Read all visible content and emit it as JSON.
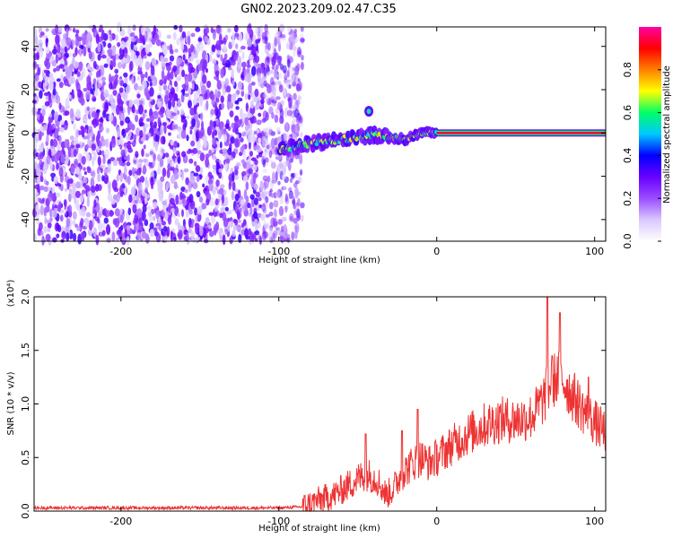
{
  "title": "GN02.2023.209.02.47.C35",
  "chart_data": [
    {
      "type": "heatmap",
      "xlabel": "Height of straight line (km)",
      "ylabel": "Frequency (Hz)",
      "xlim": [
        -255,
        107
      ],
      "ylim": [
        -50,
        49
      ],
      "xticks": [
        -200,
        -100,
        0,
        100
      ],
      "yticks": [
        -40,
        -20,
        0,
        20,
        40
      ],
      "colorbar": {
        "label": "Normalized spectral amplitude",
        "range": [
          0,
          1
        ],
        "ticks": [
          0.0,
          0.2,
          0.4,
          0.6,
          0.8
        ],
        "tick_labels": [
          "0.0",
          "0.2",
          "0.4",
          "0.6",
          "0.8"
        ],
        "colormap": [
          "#ffffff",
          "#d9c8ff",
          "#9a4dff",
          "#6a00ff",
          "#0000ff",
          "#00c8ff",
          "#00ff66",
          "#ffff00",
          "#ff8000",
          "#ff0000",
          "#ff00a0"
        ]
      },
      "features": {
        "noise_region_x": [
          -255,
          -85
        ],
        "ramp": [
          [
            -100,
            -8
          ],
          [
            -80,
            -5
          ],
          [
            -60,
            -3
          ],
          [
            -40,
            -1
          ],
          [
            -20,
            -3
          ],
          [
            -10,
            0
          ],
          [
            0,
            0
          ]
        ],
        "steady_line": {
          "x": [
            0,
            107
          ],
          "y": 0
        },
        "spot": {
          "x": -43,
          "y": 10
        }
      }
    },
    {
      "type": "line",
      "xlabel": "Height of straight line (km)",
      "ylabel": "SNR (10 * v/v)",
      "y_multiplier_label": "(x10⁴)",
      "xlim": [
        -255,
        107
      ],
      "ylim": [
        0,
        2.0
      ],
      "xticks": [
        -200,
        -100,
        0,
        100
      ],
      "yticks": [
        0.0,
        0.5,
        1.0,
        1.5,
        2.0
      ],
      "ytick_labels": [
        "0.0",
        "0.5",
        "1.0",
        "1.5",
        "2.0"
      ],
      "series": [
        {
          "color": "#ee3333",
          "envelope": [
            [
              -255,
              0.03
            ],
            [
              -150,
              0.03
            ],
            [
              -100,
              0.03
            ],
            [
              -85,
              0.04
            ],
            [
              -75,
              0.1
            ],
            [
              -65,
              0.15
            ],
            [
              -55,
              0.25
            ],
            [
              -45,
              0.35
            ],
            [
              -38,
              0.3
            ],
            [
              -32,
              0.15
            ],
            [
              -28,
              0.2
            ],
            [
              -22,
              0.35
            ],
            [
              -15,
              0.45
            ],
            [
              -10,
              0.5
            ],
            [
              -5,
              0.45
            ],
            [
              0,
              0.5
            ],
            [
              10,
              0.62
            ],
            [
              20,
              0.72
            ],
            [
              30,
              0.8
            ],
            [
              40,
              0.85
            ],
            [
              50,
              0.85
            ],
            [
              60,
              0.88
            ],
            [
              68,
              1.05
            ],
            [
              72,
              1.18
            ],
            [
              76,
              1.25
            ],
            [
              80,
              1.22
            ],
            [
              85,
              1.1
            ],
            [
              90,
              1.0
            ],
            [
              95,
              0.9
            ],
            [
              100,
              0.83
            ],
            [
              105,
              0.75
            ]
          ],
          "spikes": [
            [
              -45,
              0.72
            ],
            [
              -22,
              0.75
            ],
            [
              -12,
              0.95
            ],
            [
              70,
              2.0
            ],
            [
              73,
              1.45
            ],
            [
              78,
              1.85
            ],
            [
              96,
              1.25
            ]
          ]
        }
      ]
    }
  ]
}
